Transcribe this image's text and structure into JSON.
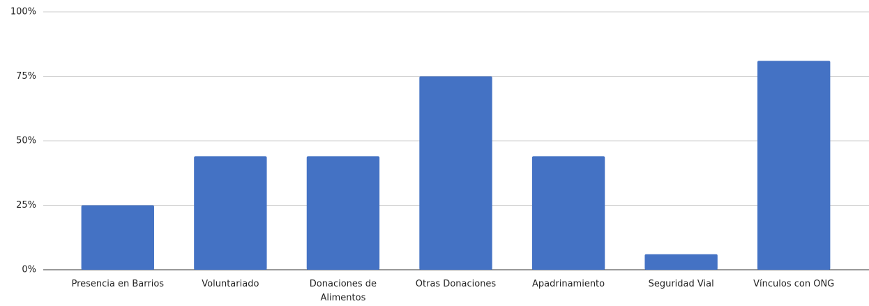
{
  "chart_data": {
    "type": "bar",
    "categories": [
      "Presencia en Barrios",
      "Voluntariado",
      "Donaciones de Alimentos",
      "Otras Donaciones",
      "Apadrinamiento",
      "Seguridad Vial",
      "Vínculos con ONG"
    ],
    "values": [
      25,
      44,
      44,
      75,
      44,
      6,
      81
    ],
    "color": "#4472c4",
    "ylim": [
      0,
      100
    ],
    "yticks": [
      {
        "value": 0,
        "label": "0%"
      },
      {
        "value": 25,
        "label": "25%"
      },
      {
        "value": 50,
        "label": "50%"
      },
      {
        "value": 75,
        "label": "75%"
      },
      {
        "value": 100,
        "label": "100%"
      }
    ],
    "grid": true
  }
}
